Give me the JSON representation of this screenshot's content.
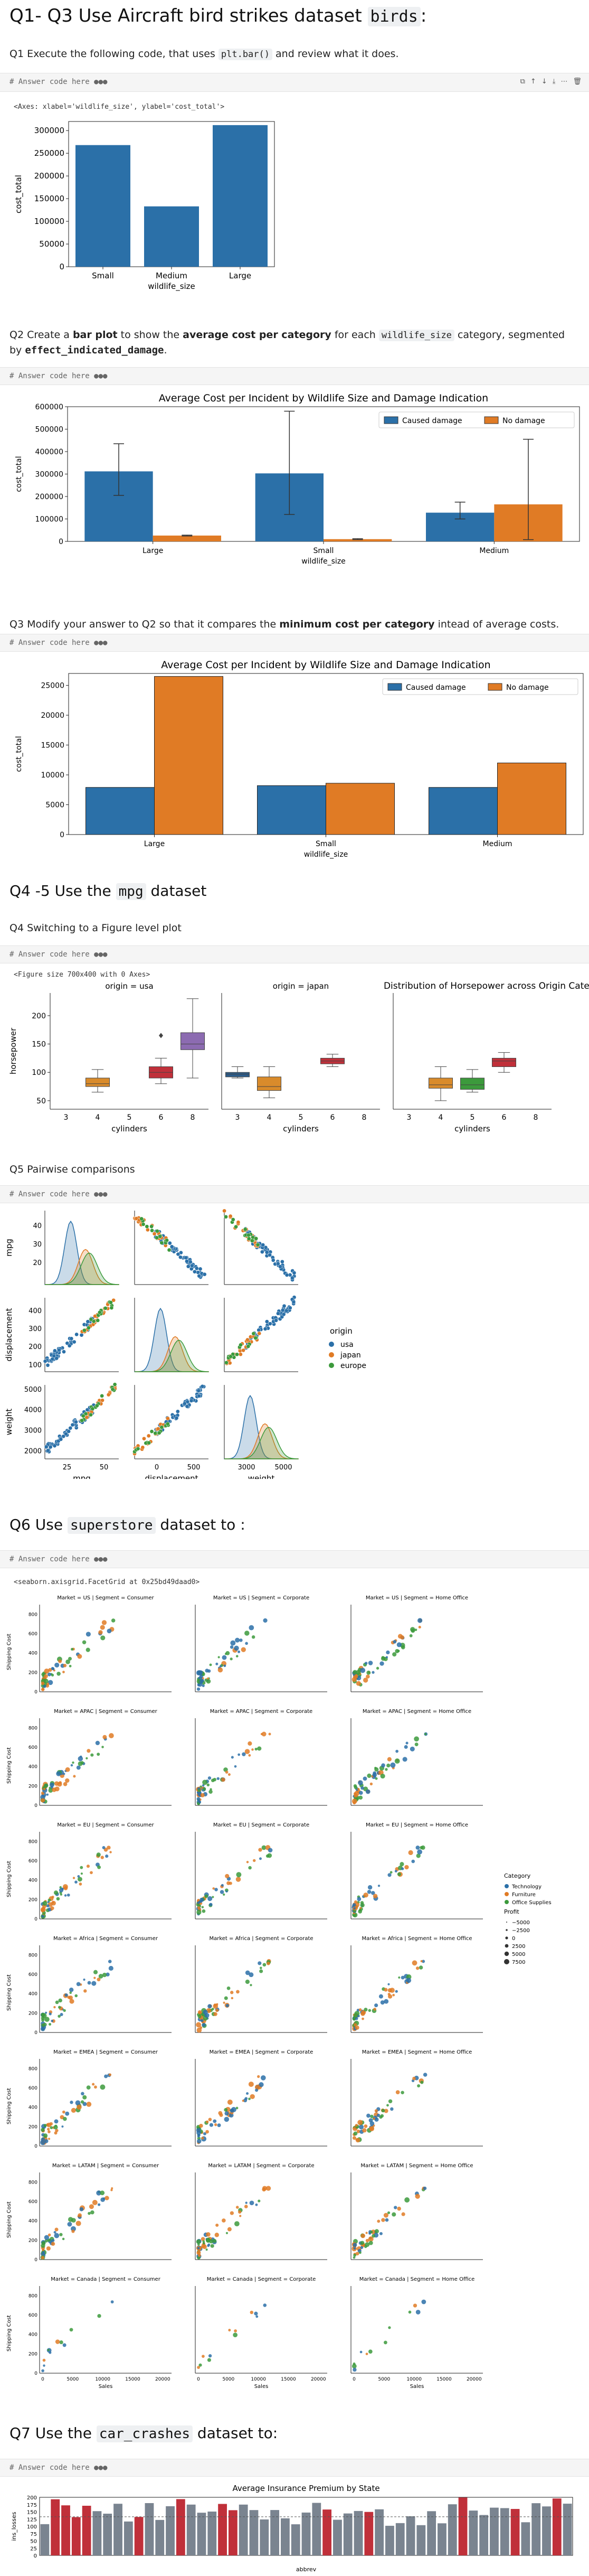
{
  "section1": {
    "title_pre": "Q1- Q3 Use Aircraft bird strikes dataset ",
    "title_code": "birds",
    "title_post": ":"
  },
  "q1": {
    "pre": "Q1 Execute the following code, that uses ",
    "code": "plt.bar()",
    "post": " and review what it does."
  },
  "cell_placeholder": "# Answer code here ●●●",
  "cell_toolbar": [
    "⧉",
    "↑",
    "↓",
    "⤓",
    "⋯",
    "🗑"
  ],
  "q1_output": "<Axes: xlabel='wildlife_size', ylabel='cost_total'>",
  "q2": {
    "pre": "Q2 Create a ",
    "bold1": "bar plot",
    "mid1": " to show the ",
    "bold2": "average cost per category",
    "mid2": " for each ",
    "code": "wildlife_size",
    "mid3": " category, segmented by ",
    "code2": "effect_indicated_damage",
    "post": "."
  },
  "q3": {
    "pre": "Q3 Modify your answer to Q2 so that it compares the ",
    "bold": "minimum cost per category",
    "post": " intead of average costs."
  },
  "section2": {
    "title_pre": "Q4 -5 Use the ",
    "title_code": "mpg",
    "title_post": " dataset"
  },
  "q4": "Q4 Switching to a Figure level plot",
  "q4_output": "<Figure size 700x400 with 0 Axes>",
  "q5": "Q5 Pairwise comparisons",
  "section3": {
    "title_pre": "Q6 Use ",
    "title_code": "superstore",
    "title_post": " dataset to :"
  },
  "q6_output": "<seaborn.axisgrid.FacetGrid at 0x25bd49daad0>",
  "section4": {
    "title_pre": "Q7 Use the ",
    "title_code": "car_crashes",
    "title_post": " dataset to:"
  },
  "colors": {
    "blue": "#2b70a8",
    "orange": "#e07b25",
    "green": "#3c9a3c",
    "red": "#c0303a",
    "gray": "#7a8490"
  },
  "chart_data": [
    {
      "type": "bar",
      "title": "",
      "xlabel": "wildlife_size",
      "ylabel": "cost_total",
      "categories": [
        "Small",
        "Medium",
        "Large"
      ],
      "values": [
        268000,
        133000,
        312000
      ],
      "ylim": [
        0,
        320000
      ],
      "yticks": [
        0,
        50000,
        100000,
        150000,
        200000,
        250000,
        300000
      ]
    },
    {
      "type": "bar",
      "title": "Average Cost per Incident by Wildlife Size and Damage Indication",
      "xlabel": "wildlife_size",
      "ylabel": "cost_total",
      "categories": [
        "Large",
        "Small",
        "Medium"
      ],
      "series": [
        {
          "name": "Caused damage",
          "values": [
            312000,
            303000,
            128000
          ],
          "err": [
            [
              205000,
              435000
            ],
            [
              120000,
              580000
            ],
            [
              100000,
              175000
            ]
          ]
        },
        {
          "name": "No damage",
          "values": [
            26000,
            10000,
            165000
          ],
          "err": [
            [
              24000,
              28000
            ],
            [
              8000,
              12000
            ],
            [
              8000,
              455000
            ]
          ]
        }
      ],
      "ylim": [
        0,
        600000
      ],
      "yticks": [
        0,
        100000,
        200000,
        300000,
        400000,
        500000,
        600000
      ],
      "legend": "top-right"
    },
    {
      "type": "bar",
      "title": "Average Cost per Incident by Wildlife Size and Damage Indication",
      "xlabel": "wildlife_size",
      "ylabel": "cost_total",
      "categories": [
        "Large",
        "Small",
        "Medium"
      ],
      "series": [
        {
          "name": "Caused damage",
          "values": [
            7900,
            8200,
            7900
          ]
        },
        {
          "name": "No damage",
          "values": [
            26500,
            8600,
            12000
          ]
        }
      ],
      "ylim": [
        0,
        27000
      ],
      "yticks": [
        0,
        5000,
        10000,
        15000,
        20000,
        25000
      ],
      "legend": "top-right"
    },
    {
      "type": "boxplot",
      "title": "Distribution of Horsepower across Origin Categories",
      "ylabel": "horsepower",
      "xlabel": "cylinders",
      "panels": [
        "origin = usa",
        "origin = japan",
        ""
      ],
      "categories": [
        "3",
        "4",
        "5",
        "6",
        "8"
      ],
      "yticks": [
        50,
        100,
        150,
        200
      ]
    },
    {
      "type": "scatter",
      "title": "",
      "vars": [
        "mpg",
        "displacement",
        "weight"
      ],
      "legend_title": "origin",
      "legend": [
        "usa",
        "japan",
        "europe"
      ]
    },
    {
      "type": "scatter",
      "title": "",
      "xlabel": "Sales",
      "ylabel": "Shipping Cost",
      "rows": [
        "Market = US",
        "Market = APAC",
        "Market = EU",
        "Market = Africa",
        "Market = EMEA",
        "Market = LATAM",
        "Market = Canada"
      ],
      "cols": [
        "Segment = Consumer",
        "Segment = Corporate",
        "Segment = Home Office"
      ],
      "legend_title": "Category",
      "legend": [
        "Technology",
        "Furniture",
        "Office Supplies"
      ],
      "size_title": "Profit",
      "size_legend": [
        "−5000",
        "−2500",
        "0",
        "2500",
        "5000",
        "7500"
      ],
      "xticks": [
        "0",
        "5000",
        "10000",
        "15000",
        "20000"
      ]
    },
    {
      "type": "bar",
      "title": "Average Insurance Premium by State",
      "xlabel": "abbrev",
      "ylabel": "ins_losses",
      "ylim": [
        0,
        200
      ],
      "yticks": [
        0,
        25,
        50,
        75,
        100,
        125,
        150,
        175,
        200
      ]
    }
  ]
}
